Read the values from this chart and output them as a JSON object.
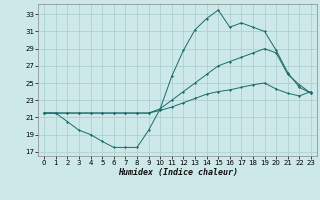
{
  "xlabel": "Humidex (Indice chaleur)",
  "xlim": [
    -0.5,
    23.5
  ],
  "ylim": [
    16.5,
    34.2
  ],
  "yticks": [
    17,
    19,
    21,
    23,
    25,
    27,
    29,
    31,
    33
  ],
  "xticks": [
    0,
    1,
    2,
    3,
    4,
    5,
    6,
    7,
    8,
    9,
    10,
    11,
    12,
    13,
    14,
    15,
    16,
    17,
    18,
    19,
    20,
    21,
    22,
    23
  ],
  "bg_color": "#cce8e8",
  "grid_color": "#aacccc",
  "line_color": "#1a6b6b",
  "line_max": [
    21.5,
    21.5,
    20.5,
    19.5,
    19.0,
    18.2,
    17.5,
    17.5,
    17.5,
    19.5,
    22.0,
    25.8,
    28.8,
    31.2,
    32.5,
    33.5,
    31.5,
    32.0,
    31.5,
    31.0,
    28.8,
    26.2,
    24.5,
    23.8
  ],
  "line_mean": [
    21.5,
    21.5,
    21.5,
    21.5,
    21.5,
    21.5,
    21.5,
    21.5,
    21.5,
    21.5,
    22.0,
    23.0,
    24.0,
    25.0,
    26.0,
    27.0,
    27.5,
    28.0,
    28.5,
    29.0,
    28.5,
    26.0,
    24.8,
    23.8
  ],
  "line_min": [
    21.5,
    21.5,
    21.5,
    21.5,
    21.5,
    21.5,
    21.5,
    21.5,
    21.5,
    21.5,
    21.8,
    22.2,
    22.7,
    23.2,
    23.7,
    24.0,
    24.2,
    24.5,
    24.8,
    25.0,
    24.3,
    23.8,
    23.5,
    24.0
  ]
}
